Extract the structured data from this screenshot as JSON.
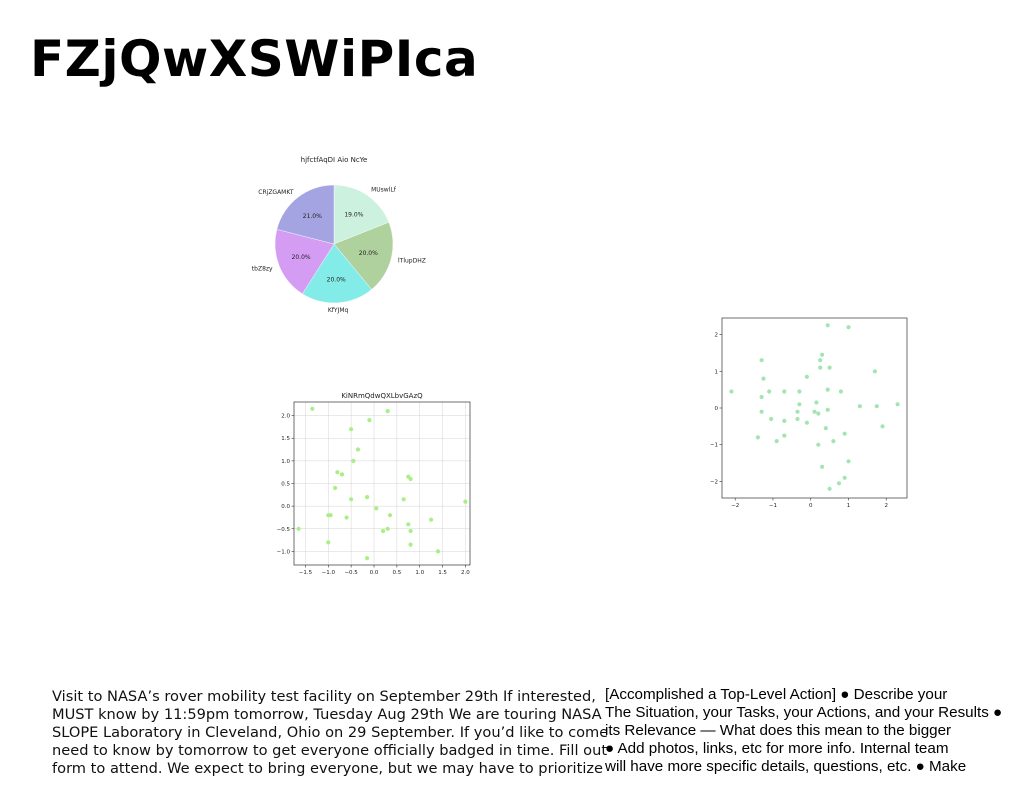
{
  "slide": {
    "title": "FZjQwXSWiPIca"
  },
  "chart_data": [
    {
      "type": "pie",
      "title": "hjfctfAqDI Aio NcYe",
      "labels": [
        "MUswlLf",
        "lTlupDHZ",
        "KfYJMq",
        "tbZ8zy",
        "CRjZGAMKT"
      ],
      "values": [
        19.0,
        20.0,
        20.0,
        20.0,
        21.0
      ],
      "value_labels": [
        "19.0%",
        "20.0%",
        "20.0%",
        "20.0%",
        "21.0%"
      ],
      "colors": [
        "#cdf1df",
        "#afd19d",
        "#84ece8",
        "#d49cf3",
        "#a4a4e2"
      ],
      "start_angle_deg": 90,
      "direction": "clockwise"
    },
    {
      "type": "scatter",
      "title": "KiNRmQdwQXLbvGAzQ",
      "xlim": [
        -1.75,
        2.1
      ],
      "ylim": [
        -1.3,
        2.3
      ],
      "xticks": [
        -1.5,
        -1.0,
        -0.5,
        0.0,
        0.5,
        1.0,
        1.5,
        2.0
      ],
      "xtick_labels": [
        "−1.5",
        "−1.0",
        "−0.5",
        "0.0",
        "0.5",
        "1.0",
        "1.5",
        "2.0"
      ],
      "yticks": [
        -1.0,
        -0.5,
        0.0,
        0.5,
        1.0,
        1.5,
        2.0
      ],
      "ytick_labels": [
        "−1.0",
        "−0.5",
        "0.0",
        "0.5",
        "1.0",
        "1.5",
        "2.0"
      ],
      "grid": true,
      "color": "#a8ef86",
      "points": [
        [
          -1.35,
          2.15
        ],
        [
          0.3,
          2.1
        ],
        [
          -0.1,
          1.9
        ],
        [
          -0.5,
          1.7
        ],
        [
          -0.35,
          1.25
        ],
        [
          -0.45,
          1.0
        ],
        [
          -0.8,
          0.75
        ],
        [
          -0.7,
          0.7
        ],
        [
          0.75,
          0.65
        ],
        [
          0.8,
          0.6
        ],
        [
          -0.85,
          0.4
        ],
        [
          -0.5,
          0.15
        ],
        [
          -0.15,
          0.2
        ],
        [
          0.65,
          0.15
        ],
        [
          2.0,
          0.1
        ],
        [
          0.05,
          -0.05
        ],
        [
          -1.0,
          -0.2
        ],
        [
          -0.95,
          -0.2
        ],
        [
          -0.6,
          -0.25
        ],
        [
          0.35,
          -0.2
        ],
        [
          1.25,
          -0.3
        ],
        [
          0.75,
          -0.4
        ],
        [
          -1.65,
          -0.5
        ],
        [
          0.3,
          -0.5
        ],
        [
          0.2,
          -0.55
        ],
        [
          0.8,
          -0.55
        ],
        [
          -1.0,
          -0.8
        ],
        [
          0.8,
          -0.85
        ],
        [
          1.4,
          -1.0
        ],
        [
          -0.15,
          -1.15
        ]
      ]
    },
    {
      "type": "scatter",
      "title": "",
      "xlim": [
        -2.35,
        2.55
      ],
      "ylim": [
        -2.45,
        2.45
      ],
      "xticks": [
        -2,
        -1,
        0,
        1,
        2
      ],
      "xtick_labels": [
        "−2",
        "−1",
        "0",
        "1",
        "2"
      ],
      "yticks": [
        -2,
        -1,
        0,
        1,
        2
      ],
      "ytick_labels": [
        "−2",
        "−1",
        "0",
        "1",
        "2"
      ],
      "grid": false,
      "color": "#a3e5b2",
      "points": [
        [
          0.45,
          2.25
        ],
        [
          1.0,
          2.2
        ],
        [
          0.3,
          1.45
        ],
        [
          -1.3,
          1.3
        ],
        [
          0.25,
          1.3
        ],
        [
          0.25,
          1.1
        ],
        [
          0.5,
          1.1
        ],
        [
          1.7,
          1.0
        ],
        [
          -0.1,
          0.85
        ],
        [
          -1.25,
          0.8
        ],
        [
          0.45,
          0.5
        ],
        [
          0.8,
          0.45
        ],
        [
          -2.1,
          0.45
        ],
        [
          -1.1,
          0.45
        ],
        [
          -0.7,
          0.45
        ],
        [
          -0.3,
          0.45
        ],
        [
          -1.3,
          0.3
        ],
        [
          -0.3,
          0.1
        ],
        [
          0.15,
          0.15
        ],
        [
          1.3,
          0.05
        ],
        [
          1.75,
          0.05
        ],
        [
          2.3,
          0.1
        ],
        [
          -0.35,
          -0.1
        ],
        [
          0.1,
          -0.1
        ],
        [
          0.2,
          -0.15
        ],
        [
          0.45,
          -0.05
        ],
        [
          -1.3,
          -0.1
        ],
        [
          -1.05,
          -0.3
        ],
        [
          -0.35,
          -0.3
        ],
        [
          -0.7,
          -0.35
        ],
        [
          -0.1,
          -0.4
        ],
        [
          0.4,
          -0.55
        ],
        [
          1.9,
          -0.5
        ],
        [
          0.9,
          -0.7
        ],
        [
          -0.7,
          -0.75
        ],
        [
          -1.4,
          -0.8
        ],
        [
          -0.9,
          -0.9
        ],
        [
          0.6,
          -0.9
        ],
        [
          0.2,
          -1.0
        ],
        [
          1.0,
          -1.45
        ],
        [
          0.3,
          -1.6
        ],
        [
          0.9,
          -1.9
        ],
        [
          0.75,
          -2.05
        ],
        [
          0.5,
          -2.2
        ]
      ]
    }
  ],
  "text_left": {
    "lines": [
      "Visit to NASA’s rover mobility test facility on September 29th If interested,",
      "MUST know by 11:59pm tomorrow, Tuesday Aug 29th We are touring NASA",
      "SLOPE Laboratory in Cleveland, Ohio on 29 September. If you’d like to come,",
      "need to know by tomorrow to get everyone officially badged in time. Fill out",
      "form to attend. We expect to bring everyone, but we may have to prioritize"
    ]
  },
  "text_right": {
    "lines": [
      "[Accomplished a Top-Level Action] ● Describe your",
      "The Situation, your Tasks, your Actions, and your Results ●",
      "its Relevance — What does this mean to the bigger",
      "● Add photos, links, etc for more info. Internal team",
      "will have more specific details, questions, etc. ● Make"
    ]
  }
}
